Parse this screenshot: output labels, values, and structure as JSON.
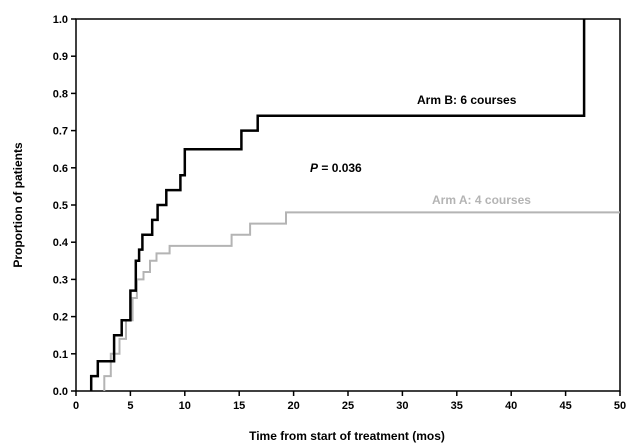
{
  "chart_data": {
    "type": "line",
    "step": true,
    "xlabel": "Time from start of treatment (mos)",
    "ylabel": "Proportion of patients",
    "xlim": [
      0,
      50
    ],
    "ylim": [
      0,
      1.0
    ],
    "x_ticks": [
      0,
      5,
      10,
      15,
      20,
      25,
      30,
      35,
      40,
      45,
      50
    ],
    "y_ticks": [
      0.0,
      0.1,
      0.2,
      0.3,
      0.4,
      0.5,
      0.6,
      0.7,
      0.8,
      0.9,
      1.0
    ],
    "x_tick_labels": [
      "0",
      "5",
      "10",
      "15",
      "20",
      "25",
      "30",
      "35",
      "40",
      "45",
      "50"
    ],
    "y_tick_labels": [
      "0.0",
      "0.1",
      "0.2",
      "0.3",
      "0.4",
      "0.5",
      "0.6",
      "0.7",
      "0.8",
      "0.9",
      "1.0"
    ],
    "grid": false,
    "annotations": {
      "p_symbol": "P",
      "p_text": " = 0.036"
    },
    "series": [
      {
        "name": "Arm B: 6 courses",
        "color": "#000000",
        "points": [
          [
            1.4,
            0.0
          ],
          [
            1.4,
            0.04
          ],
          [
            2.0,
            0.04
          ],
          [
            2.0,
            0.08
          ],
          [
            3.5,
            0.08
          ],
          [
            3.5,
            0.15
          ],
          [
            4.2,
            0.15
          ],
          [
            4.2,
            0.19
          ],
          [
            5.0,
            0.19
          ],
          [
            5.0,
            0.27
          ],
          [
            5.5,
            0.27
          ],
          [
            5.5,
            0.35
          ],
          [
            5.8,
            0.35
          ],
          [
            5.8,
            0.38
          ],
          [
            6.1,
            0.38
          ],
          [
            6.1,
            0.42
          ],
          [
            7.0,
            0.42
          ],
          [
            7.0,
            0.46
          ],
          [
            7.5,
            0.46
          ],
          [
            7.5,
            0.5
          ],
          [
            8.3,
            0.5
          ],
          [
            8.3,
            0.54
          ],
          [
            9.6,
            0.54
          ],
          [
            9.6,
            0.58
          ],
          [
            10.0,
            0.58
          ],
          [
            10.0,
            0.65
          ],
          [
            15.2,
            0.65
          ],
          [
            15.2,
            0.7
          ],
          [
            16.7,
            0.7
          ],
          [
            16.7,
            0.74
          ],
          [
            46.7,
            0.74
          ],
          [
            46.7,
            1.0
          ]
        ]
      },
      {
        "name": "Arm A: 4 courses",
        "color": "#b4b4b4",
        "points": [
          [
            2.6,
            0.0
          ],
          [
            2.6,
            0.04
          ],
          [
            3.2,
            0.04
          ],
          [
            3.2,
            0.1
          ],
          [
            4.0,
            0.1
          ],
          [
            4.0,
            0.14
          ],
          [
            4.6,
            0.14
          ],
          [
            4.6,
            0.19
          ],
          [
            5.2,
            0.19
          ],
          [
            5.2,
            0.25
          ],
          [
            5.6,
            0.25
          ],
          [
            5.6,
            0.3
          ],
          [
            6.2,
            0.3
          ],
          [
            6.2,
            0.32
          ],
          [
            6.8,
            0.32
          ],
          [
            6.8,
            0.35
          ],
          [
            7.4,
            0.35
          ],
          [
            7.4,
            0.37
          ],
          [
            8.6,
            0.37
          ],
          [
            8.6,
            0.39
          ],
          [
            14.3,
            0.39
          ],
          [
            14.3,
            0.42
          ],
          [
            16.0,
            0.42
          ],
          [
            16.0,
            0.45
          ],
          [
            19.3,
            0.45
          ],
          [
            19.3,
            0.48
          ],
          [
            50.0,
            0.48
          ]
        ]
      }
    ]
  }
}
